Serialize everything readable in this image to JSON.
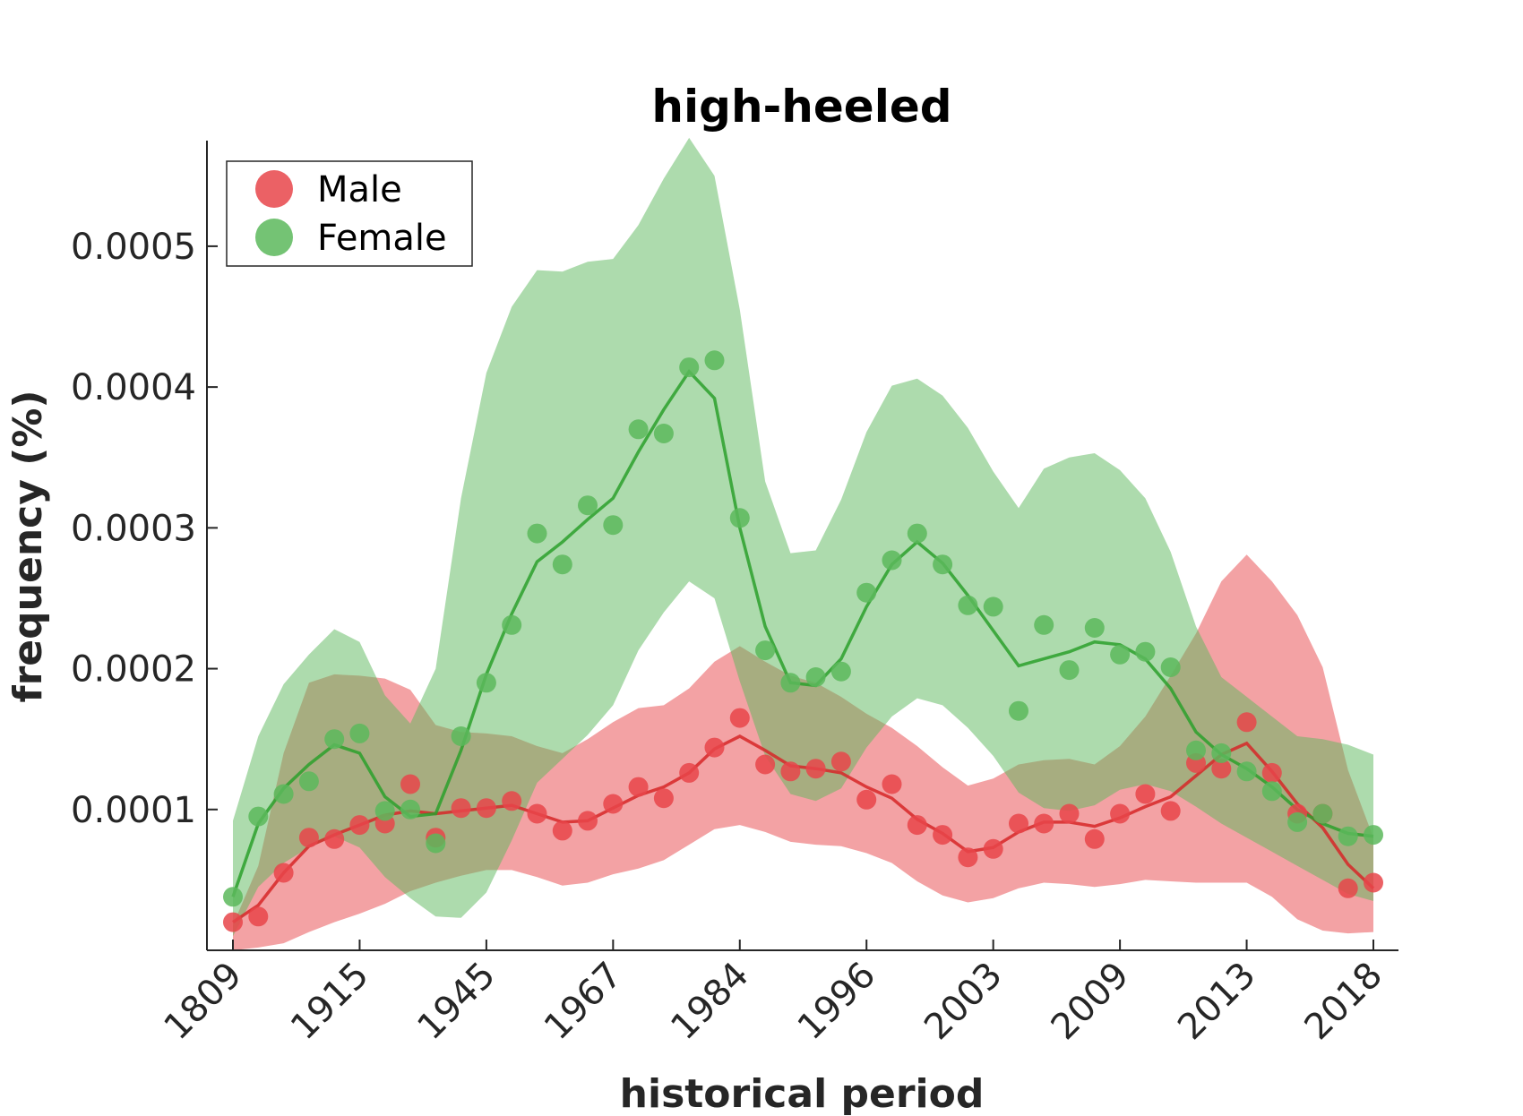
{
  "chart_data": {
    "type": "scatter",
    "title": "high-heeled",
    "xlabel": "historical period",
    "ylabel": "frequency (%)",
    "ylim": [
      0.0,
      0.000575
    ],
    "x": [
      0,
      1,
      2,
      3,
      4,
      5,
      6,
      7,
      8,
      9,
      10,
      11,
      12,
      13,
      14,
      15,
      16,
      17,
      18,
      19,
      20,
      21,
      22,
      23,
      24,
      25,
      26,
      27,
      28,
      29,
      30,
      31,
      32,
      33,
      34,
      35,
      36,
      37,
      38,
      39,
      40,
      41,
      42,
      43,
      44,
      45
    ],
    "x_ticks": [
      0,
      5,
      10,
      15,
      20,
      25,
      30,
      35,
      40,
      45
    ],
    "x_tick_labels": [
      "1809",
      "1915",
      "1945",
      "1967",
      "1984",
      "1996",
      "2003",
      "2009",
      "2013",
      "2018"
    ],
    "y_ticks": [
      0.0001,
      0.0002,
      0.0003,
      0.0004,
      0.0005
    ],
    "y_tick_labels": [
      "0.0001",
      "0.0002",
      "0.0003",
      "0.0004",
      "0.0005"
    ],
    "legend": {
      "position": "top-left",
      "entries": [
        "Male",
        "Female"
      ]
    },
    "grid": false,
    "series": [
      {
        "name": "Male",
        "color": "#e8454a",
        "line_color": "#d62728",
        "points": [
          2e-05,
          2.4e-05,
          5.5e-05,
          8e-05,
          7.9e-05,
          8.9e-05,
          9e-05,
          0.000118,
          8e-05,
          0.000101,
          0.000101,
          0.000106,
          9.7e-05,
          8.5e-05,
          9.2e-05,
          0.000104,
          0.000116,
          0.000108,
          0.000126,
          0.000144,
          0.000165,
          0.000132,
          0.000127,
          0.000129,
          0.000134,
          0.000107,
          0.000118,
          8.9e-05,
          8.2e-05,
          6.6e-05,
          7.2e-05,
          9e-05,
          9e-05,
          9.7e-05,
          7.9e-05,
          9.7e-05,
          0.000111,
          9.9e-05,
          0.000133,
          0.000129,
          0.000162,
          0.000126,
          9.7e-05,
          9.7e-05,
          4.4e-05,
          4.8e-05
        ],
        "line": [
          2e-05,
          3.2e-05,
          5.5e-05,
          7.4e-05,
          8.2e-05,
          8.9e-05,
          9.6e-05,
          9.9e-05,
          9.7e-05,
          9.9e-05,
          0.000101,
          0.000103,
          9.7e-05,
          9.1e-05,
          9.2e-05,
          0.000101,
          0.00011,
          0.000116,
          0.000126,
          0.000143,
          0.000152,
          0.000142,
          0.000131,
          0.000129,
          0.000126,
          0.000116,
          0.000108,
          9.3e-05,
          8.3e-05,
          7e-05,
          7.3e-05,
          8.4e-05,
          9.1e-05,
          9.1e-05,
          8.8e-05,
          9.4e-05,
          0.000102,
          0.000109,
          0.000124,
          0.000139,
          0.000147,
          0.000127,
          0.000104,
          8.7e-05,
          6.1e-05,
          4.4e-05
        ],
        "band_upper": [
          1.8e-05,
          6e-05,
          0.00014,
          0.00019,
          0.000196,
          0.000195,
          0.000193,
          0.000185,
          0.00016,
          0.000155,
          0.000154,
          0.000152,
          0.000145,
          0.00014,
          0.00015,
          0.000162,
          0.000172,
          0.000174,
          0.000186,
          0.000205,
          0.000216,
          0.000205,
          0.000195,
          0.00019,
          0.00018,
          0.000168,
          0.000158,
          0.000145,
          0.00013,
          0.000117,
          0.000122,
          0.000132,
          0.000135,
          0.000136,
          0.000132,
          0.000145,
          0.000166,
          0.000195,
          0.000225,
          0.000262,
          0.000281,
          0.000262,
          0.000238,
          0.000201,
          0.000128,
          8e-05
        ],
        "band_lower": [
          0.0,
          2e-06,
          5e-06,
          1.3e-05,
          2e-05,
          2.6e-05,
          3.3e-05,
          4.2e-05,
          4.8e-05,
          5.3e-05,
          5.7e-05,
          5.7e-05,
          5.2e-05,
          4.6e-05,
          4.8e-05,
          5.4e-05,
          5.8e-05,
          6.4e-05,
          7.5e-05,
          8.6e-05,
          8.9e-05,
          8.4e-05,
          7.7e-05,
          7.5e-05,
          7.4e-05,
          6.9e-05,
          6.2e-05,
          4.9e-05,
          3.9e-05,
          3.4e-05,
          3.7e-05,
          4.4e-05,
          4.8e-05,
          4.7e-05,
          4.5e-05,
          4.7e-05,
          5e-05,
          4.9e-05,
          4.8e-05,
          4.8e-05,
          4.8e-05,
          3.8e-05,
          2.2e-05,
          1.4e-05,
          1.2e-05,
          1.3e-05
        ]
      },
      {
        "name": "Female",
        "color": "#5cb85c",
        "line_color": "#2ca02c",
        "points": [
          3.8e-05,
          9.5e-05,
          0.000111,
          0.00012,
          0.00015,
          0.000154,
          9.9e-05,
          0.0001,
          7.6e-05,
          0.000152,
          0.00019,
          0.000231,
          0.000296,
          0.000274,
          0.000316,
          0.000302,
          0.00037,
          0.000367,
          0.000414,
          0.000419,
          0.000307,
          0.000213,
          0.00019,
          0.000194,
          0.000198,
          0.000254,
          0.000277,
          0.000296,
          0.000274,
          0.000245,
          0.000244,
          0.00017,
          0.000231,
          0.000199,
          0.000229,
          0.00021,
          0.000212,
          0.000201,
          0.000142,
          0.00014,
          0.000127,
          0.000113,
          9.1e-05,
          9.7e-05,
          8.1e-05,
          8.2e-05
        ],
        "line": [
          3.8e-05,
          9e-05,
          0.000115,
          0.000132,
          0.000146,
          0.00014,
          0.000109,
          9.5e-05,
          9.7e-05,
          0.000142,
          0.000196,
          0.000239,
          0.000276,
          0.00029,
          0.000306,
          0.000321,
          0.000354,
          0.000384,
          0.000411,
          0.000392,
          0.0003,
          0.00023,
          0.00019,
          0.000188,
          0.000207,
          0.000244,
          0.000274,
          0.00029,
          0.000275,
          0.000252,
          0.000227,
          0.000202,
          0.000207,
          0.000212,
          0.000219,
          0.000217,
          0.000207,
          0.000186,
          0.000155,
          0.000139,
          0.000129,
          0.000116,
          0.0001,
          9e-05,
          8.3e-05,
          8.1e-05
        ],
        "band_upper": [
          9.2e-05,
          0.000152,
          0.000189,
          0.00021,
          0.000228,
          0.000219,
          0.000181,
          0.000161,
          0.0002,
          0.000321,
          0.00041,
          0.000457,
          0.000483,
          0.000482,
          0.000489,
          0.000491,
          0.000515,
          0.000548,
          0.000577,
          0.00055,
          0.000455,
          0.000333,
          0.000282,
          0.000284,
          0.00032,
          0.000368,
          0.000401,
          0.000406,
          0.000394,
          0.000371,
          0.00034,
          0.000314,
          0.000342,
          0.00035,
          0.000353,
          0.000341,
          0.000321,
          0.000283,
          0.00023,
          0.000194,
          0.00018,
          0.000166,
          0.000152,
          0.00015,
          0.000146,
          0.000139
        ],
        "band_lower": [
          1e-05,
          4.5e-05,
          6.2e-05,
          7.3e-05,
          8.1e-05,
          7.3e-05,
          5.2e-05,
          3.7e-05,
          2.4e-05,
          2.3e-05,
          4.1e-05,
          7.8e-05,
          0.000119,
          0.000136,
          0.000153,
          0.000174,
          0.000213,
          0.00024,
          0.000262,
          0.00025,
          0.000191,
          0.000138,
          0.000111,
          0.000106,
          0.000115,
          0.000144,
          0.000166,
          0.000179,
          0.000174,
          0.000158,
          0.000138,
          0.000112,
          0.000101,
          9.9e-05,
          0.000103,
          0.000114,
          0.000118,
          0.000113,
          0.000102,
          9e-05,
          8e-05,
          7e-05,
          6e-05,
          5e-05,
          4e-05,
          3.5e-05
        ]
      }
    ]
  }
}
